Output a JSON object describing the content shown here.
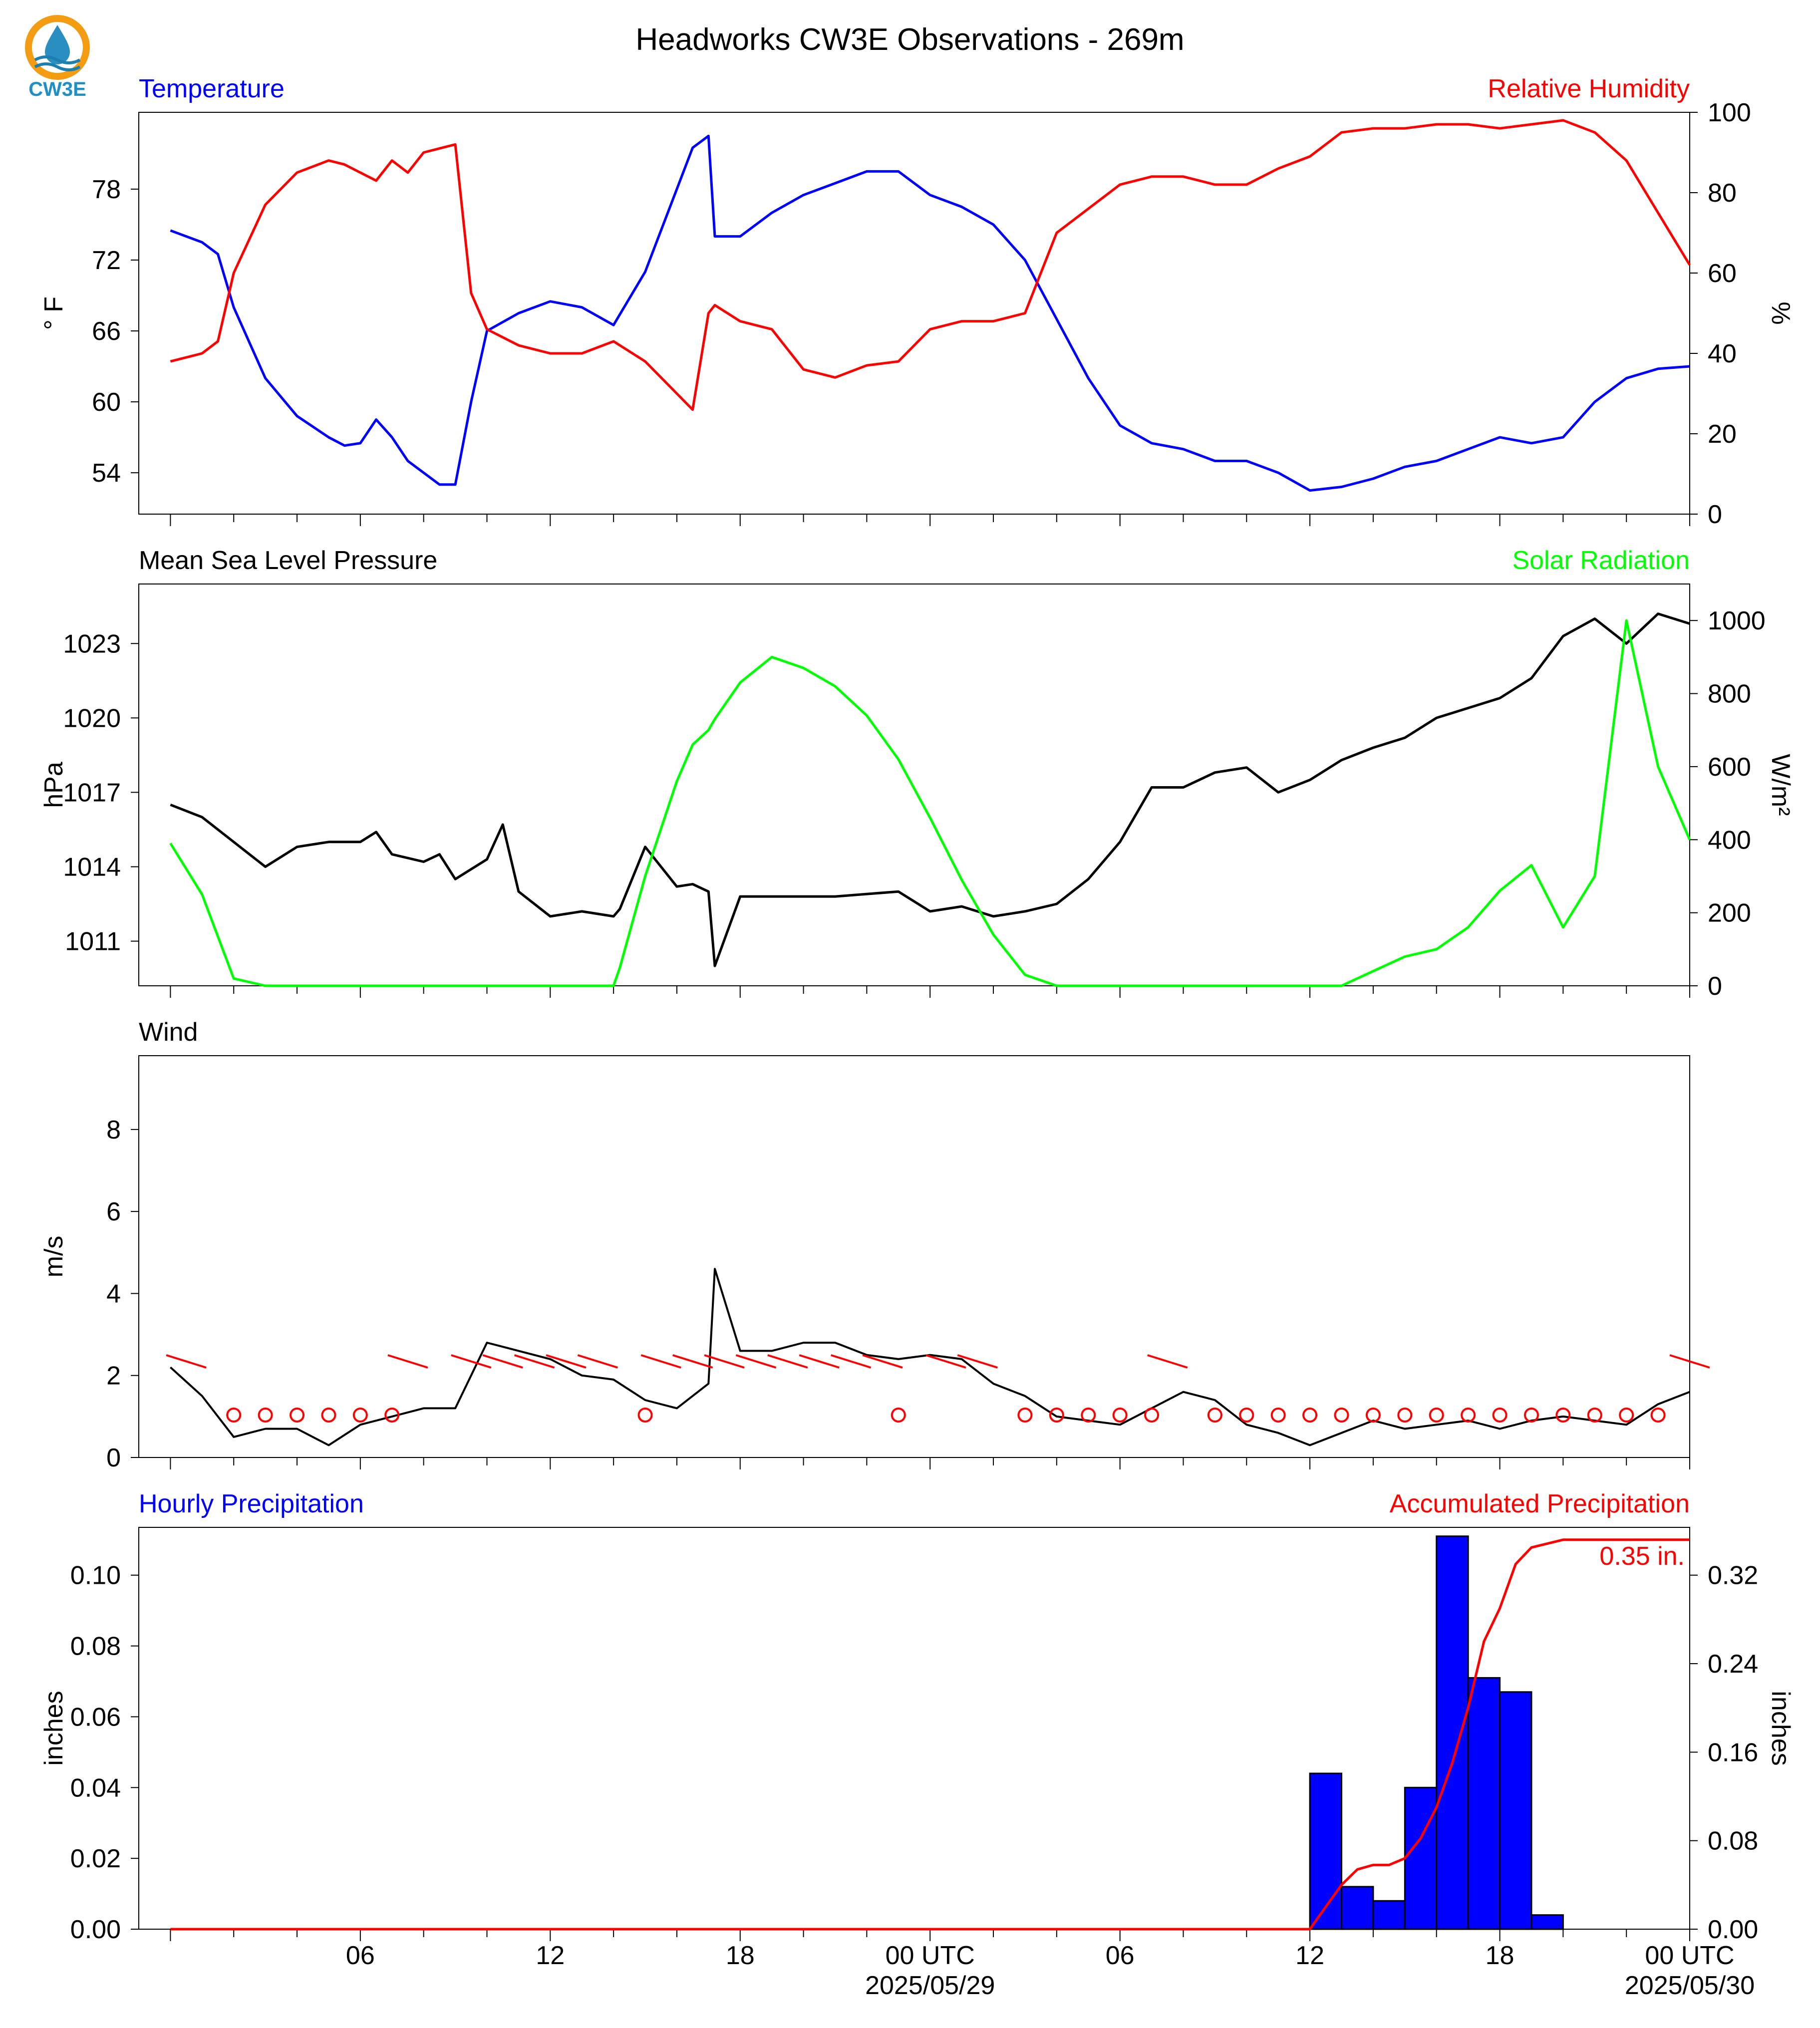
{
  "title": "Headworks CW3E Observations - 269m",
  "logo": {
    "text": "CW3E",
    "colors": {
      "ring": "#f39c12",
      "drop": "#2a8fc0",
      "wave": "#1b7fb0"
    }
  },
  "colors": {
    "temperature": "#0000ff",
    "humidity": "#ff0000",
    "pressure": "#000000",
    "solar": "#00ff00",
    "wind": "#000000",
    "barbs": "#ff0000",
    "hourly_bars": "#0000ff",
    "accum_line": "#ff0000"
  },
  "x_ticks": [
    {
      "t": 6,
      "label": "06"
    },
    {
      "t": 12,
      "label": "12"
    },
    {
      "t": 18,
      "label": "18"
    },
    {
      "t": 24,
      "label": "00 UTC",
      "sub": "2025/05/29"
    },
    {
      "t": 30,
      "label": "06"
    },
    {
      "t": 36,
      "label": "12"
    },
    {
      "t": 42,
      "label": "18"
    },
    {
      "t": 48,
      "label": "00 UTC",
      "sub": "2025/05/30"
    }
  ],
  "chart_data": [
    {
      "type": "line",
      "panel": "temperature_humidity",
      "left_title": "Temperature",
      "right_title": "Relative Humidity",
      "ylabel_left": "° F",
      "ylabel_right": "%",
      "y_left_ticks": [
        54,
        60,
        66,
        72,
        78
      ],
      "y_left_lim": [
        50.5,
        84.5
      ],
      "y_right_ticks": [
        0,
        20,
        40,
        60,
        80,
        100
      ],
      "y_right_lim": [
        0,
        100
      ],
      "x": [
        0,
        1,
        1.5,
        2,
        3,
        4,
        5,
        5.5,
        6,
        6.5,
        7,
        7.5,
        8,
        8.5,
        9,
        9.5,
        10,
        11,
        12,
        13,
        14,
        15,
        16,
        16.5,
        17,
        17.2,
        18,
        19,
        20,
        21,
        22,
        23,
        24,
        25,
        26,
        27,
        28,
        29,
        30,
        31,
        32,
        33,
        34,
        35,
        36,
        37,
        38,
        39,
        40,
        41,
        42,
        43,
        44,
        45,
        46,
        47,
        48
      ],
      "series": [
        {
          "name": "Temperature",
          "axis": "left",
          "values": [
            74.5,
            73.5,
            72.5,
            68,
            62,
            58.8,
            57,
            56.3,
            56.5,
            58.5,
            57,
            55,
            54,
            53,
            53,
            60,
            66,
            67.5,
            68.5,
            68,
            66.5,
            71,
            78,
            81.5,
            82.5,
            74,
            74,
            76,
            77.5,
            78.5,
            79.5,
            79.5,
            77.5,
            76.5,
            75,
            72,
            67,
            62,
            58,
            56.5,
            56,
            55,
            55,
            54,
            52.5,
            52.8,
            53.5,
            54.5,
            55,
            56,
            57,
            56.5,
            57,
            60,
            62,
            62.8,
            63
          ]
        },
        {
          "name": "Relative Humidity",
          "axis": "right",
          "values": [
            38,
            40,
            43,
            60,
            77,
            85,
            88,
            87,
            85,
            83,
            88,
            85,
            90,
            91,
            92,
            55,
            46,
            42,
            40,
            40,
            43,
            38,
            30,
            26,
            50,
            52,
            48,
            46,
            36,
            34,
            37,
            38,
            46,
            48,
            48,
            50,
            70,
            76,
            82,
            84,
            84,
            82,
            82,
            86,
            89,
            95,
            96,
            96,
            97,
            97,
            96,
            97,
            98,
            95,
            88,
            75,
            62
          ]
        }
      ]
    },
    {
      "type": "line",
      "panel": "pressure_solar",
      "left_title": "Mean Sea Level Pressure",
      "right_title": "Solar Radiation",
      "ylabel_left": "hPa",
      "ylabel_right": "W/m²",
      "y_left_ticks": [
        1011,
        1014,
        1017,
        1020,
        1023
      ],
      "y_left_lim": [
        1009.2,
        1025.4
      ],
      "y_right_ticks": [
        0,
        200,
        400,
        600,
        800,
        1000
      ],
      "y_right_lim": [
        0,
        1100
      ],
      "x": [
        0,
        1,
        2,
        3,
        4,
        5,
        6,
        6.5,
        7,
        8,
        8.5,
        9,
        10,
        10.5,
        11,
        12,
        13,
        14,
        14.2,
        15,
        16,
        16.5,
        17,
        17.2,
        18,
        19,
        20,
        21,
        22,
        23,
        24,
        25,
        26,
        27,
        28,
        29,
        30,
        31,
        32,
        33,
        34,
        35,
        36,
        37,
        38,
        39,
        40,
        41,
        42,
        43,
        44,
        45,
        46,
        47,
        48
      ],
      "series": [
        {
          "name": "Mean Sea Level Pressure",
          "axis": "left",
          "values": [
            1016.5,
            1016,
            1015,
            1014,
            1014.8,
            1015,
            1015,
            1015.4,
            1014.5,
            1014.2,
            1014.5,
            1013.5,
            1014.3,
            1015.7,
            1013,
            1012,
            1012.2,
            1012,
            1012.3,
            1014.8,
            1013.2,
            1013.3,
            1013,
            1010,
            1012.8,
            1012.8,
            1012.8,
            1012.8,
            1012.9,
            1013,
            1012.2,
            1012.4,
            1012,
            1012.2,
            1012.5,
            1013.5,
            1015,
            1017.2,
            1017.2,
            1017.8,
            1018,
            1017,
            1017.5,
            1018.3,
            1018.8,
            1019.2,
            1020,
            1020.4,
            1020.8,
            1021.6,
            1023.3,
            1024,
            1023,
            1024.2,
            1023.8
          ]
        },
        {
          "name": "Solar Radiation",
          "axis": "right",
          "values": [
            390,
            250,
            20,
            0,
            0,
            0,
            0,
            0,
            0,
            0,
            0,
            0,
            0,
            0,
            0,
            0,
            0,
            0,
            50,
            300,
            560,
            660,
            700,
            730,
            830,
            900,
            870,
            820,
            740,
            620,
            460,
            290,
            140,
            30,
            0,
            0,
            0,
            0,
            0,
            0,
            0,
            0,
            0,
            0,
            40,
            80,
            100,
            160,
            260,
            330,
            160,
            300,
            1000,
            600,
            400
          ]
        }
      ]
    },
    {
      "type": "line",
      "panel": "wind",
      "left_title": "Wind",
      "ylabel_left": "m/s",
      "y_left_ticks": [
        0,
        2,
        4,
        6,
        8
      ],
      "y_left_lim": [
        0,
        9.8
      ],
      "x": [
        0,
        1,
        2,
        3,
        4,
        5,
        6,
        7,
        8,
        9,
        10,
        11,
        12,
        13,
        14,
        15,
        16,
        17,
        17.2,
        18,
        19,
        20,
        21,
        22,
        23,
        24,
        25,
        26,
        27,
        28,
        29,
        30,
        31,
        32,
        33,
        34,
        35,
        36,
        37,
        38,
        39,
        40,
        41,
        42,
        43,
        44,
        45,
        46,
        47,
        48
      ],
      "series": [
        {
          "name": "Wind Speed",
          "axis": "left",
          "values": [
            2.2,
            1.5,
            0.5,
            0.7,
            0.7,
            0.3,
            0.8,
            1.0,
            1.2,
            1.2,
            2.8,
            2.6,
            2.4,
            2.0,
            1.9,
            1.4,
            1.2,
            1.8,
            4.6,
            2.6,
            2.6,
            2.8,
            2.8,
            2.5,
            2.4,
            2.5,
            2.4,
            1.8,
            1.5,
            1.0,
            0.9,
            0.8,
            1.2,
            1.6,
            1.4,
            0.8,
            0.6,
            0.3,
            0.6,
            0.9,
            0.7,
            0.8,
            0.9,
            0.7,
            0.9,
            1.0,
            0.9,
            0.8,
            1.3,
            1.6
          ]
        }
      ],
      "barbs": [
        {
          "t": 0.5,
          "type": "shaft"
        },
        {
          "t": 2,
          "type": "calm"
        },
        {
          "t": 3,
          "type": "calm"
        },
        {
          "t": 4,
          "type": "calm"
        },
        {
          "t": 5,
          "type": "calm"
        },
        {
          "t": 6,
          "type": "calm"
        },
        {
          "t": 7,
          "type": "calm"
        },
        {
          "t": 7.5,
          "type": "shaft"
        },
        {
          "t": 9.5,
          "type": "shaft"
        },
        {
          "t": 10.5,
          "type": "shaft"
        },
        {
          "t": 11.5,
          "type": "shaft"
        },
        {
          "t": 12.5,
          "type": "shaft"
        },
        {
          "t": 13.5,
          "type": "shaft"
        },
        {
          "t": 15,
          "type": "calm"
        },
        {
          "t": 15.5,
          "type": "shaft"
        },
        {
          "t": 16.5,
          "type": "shaft"
        },
        {
          "t": 17.5,
          "type": "shaft"
        },
        {
          "t": 18.5,
          "type": "shaft"
        },
        {
          "t": 19.5,
          "type": "shaft"
        },
        {
          "t": 20.5,
          "type": "shaft"
        },
        {
          "t": 21.5,
          "type": "shaft"
        },
        {
          "t": 22.5,
          "type": "shaft"
        },
        {
          "t": 23,
          "type": "calm"
        },
        {
          "t": 24.5,
          "type": "shaft"
        },
        {
          "t": 25.5,
          "type": "shaft"
        },
        {
          "t": 27,
          "type": "calm"
        },
        {
          "t": 28,
          "type": "calm"
        },
        {
          "t": 29,
          "type": "calm"
        },
        {
          "t": 30,
          "type": "calm"
        },
        {
          "t": 31,
          "type": "calm"
        },
        {
          "t": 31.5,
          "type": "shaft"
        },
        {
          "t": 33,
          "type": "calm"
        },
        {
          "t": 34,
          "type": "calm"
        },
        {
          "t": 35,
          "type": "calm"
        },
        {
          "t": 36,
          "type": "calm"
        },
        {
          "t": 37,
          "type": "calm"
        },
        {
          "t": 38,
          "type": "calm"
        },
        {
          "t": 39,
          "type": "calm"
        },
        {
          "t": 40,
          "type": "calm"
        },
        {
          "t": 41,
          "type": "calm"
        },
        {
          "t": 42,
          "type": "calm"
        },
        {
          "t": 43,
          "type": "calm"
        },
        {
          "t": 44,
          "type": "calm"
        },
        {
          "t": 45,
          "type": "calm"
        },
        {
          "t": 46,
          "type": "calm"
        },
        {
          "t": 47,
          "type": "calm"
        },
        {
          "t": 48,
          "type": "shaft"
        }
      ]
    },
    {
      "type": "bar",
      "panel": "precipitation",
      "left_title": "Hourly Precipitation",
      "right_title": "Accumulated Precipitation",
      "annotation": "0.35 in.",
      "ylabel_left": "inches",
      "ylabel_right": "inches",
      "y_left_ticks": [
        0.0,
        0.02,
        0.04,
        0.06,
        0.08,
        0.1
      ],
      "y_left_lim": [
        0,
        0.1135
      ],
      "y_right_ticks": [
        0.0,
        0.08,
        0.16,
        0.24,
        0.32
      ],
      "y_right_lim": [
        0,
        0.3632
      ],
      "bars": [
        {
          "hour": 36,
          "value": 0.044
        },
        {
          "hour": 37,
          "value": 0.012
        },
        {
          "hour": 38,
          "value": 0.008
        },
        {
          "hour": 39,
          "value": 0.04
        },
        {
          "hour": 40,
          "value": 0.111
        },
        {
          "hour": 41,
          "value": 0.071
        },
        {
          "hour": 42,
          "value": 0.067
        },
        {
          "hour": 43,
          "value": 0.004
        }
      ],
      "accumulated": {
        "x": [
          0,
          36,
          37,
          37.5,
          38,
          38.5,
          39,
          39.5,
          40,
          40.5,
          41,
          41.5,
          42,
          42.5,
          43,
          44,
          46,
          48
        ],
        "values": [
          0,
          0,
          0.04,
          0.054,
          0.058,
          0.058,
          0.064,
          0.082,
          0.11,
          0.15,
          0.2,
          0.26,
          0.29,
          0.33,
          0.345,
          0.352,
          0.352,
          0.352
        ]
      }
    }
  ]
}
